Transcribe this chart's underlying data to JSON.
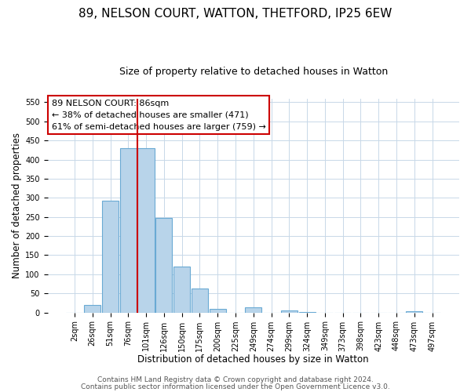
{
  "title": "89, NELSON COURT, WATTON, THETFORD, IP25 6EW",
  "subtitle": "Size of property relative to detached houses in Watton",
  "xlabel": "Distribution of detached houses by size in Watton",
  "ylabel": "Number of detached properties",
  "bar_labels": [
    "2sqm",
    "26sqm",
    "51sqm",
    "76sqm",
    "101sqm",
    "126sqm",
    "150sqm",
    "175sqm",
    "200sqm",
    "225sqm",
    "249sqm",
    "274sqm",
    "299sqm",
    "324sqm",
    "349sqm",
    "373sqm",
    "398sqm",
    "423sqm",
    "448sqm",
    "473sqm",
    "497sqm"
  ],
  "bar_values": [
    0,
    20,
    292,
    430,
    430,
    248,
    120,
    63,
    10,
    0,
    13,
    0,
    5,
    2,
    0,
    0,
    0,
    0,
    0,
    4,
    0
  ],
  "bar_color": "#b8d4ea",
  "bar_edge_color": "#6aaad4",
  "vline_x": 4.0,
  "vline_color": "#cc0000",
  "annotation_box_text": "89 NELSON COURT: 86sqm\n← 38% of detached houses are smaller (471)\n61% of semi-detached houses are larger (759) →",
  "ylim": [
    0,
    560
  ],
  "yticks": [
    0,
    50,
    100,
    150,
    200,
    250,
    300,
    350,
    400,
    450,
    500,
    550
  ],
  "footer_line1": "Contains HM Land Registry data © Crown copyright and database right 2024.",
  "footer_line2": "Contains public sector information licensed under the Open Government Licence v3.0.",
  "bg_color": "#ffffff",
  "grid_color": "#c8d8e8",
  "title_fontsize": 11,
  "subtitle_fontsize": 9,
  "axis_label_fontsize": 8.5,
  "tick_fontsize": 7,
  "annotation_fontsize": 8,
  "footer_fontsize": 6.5
}
